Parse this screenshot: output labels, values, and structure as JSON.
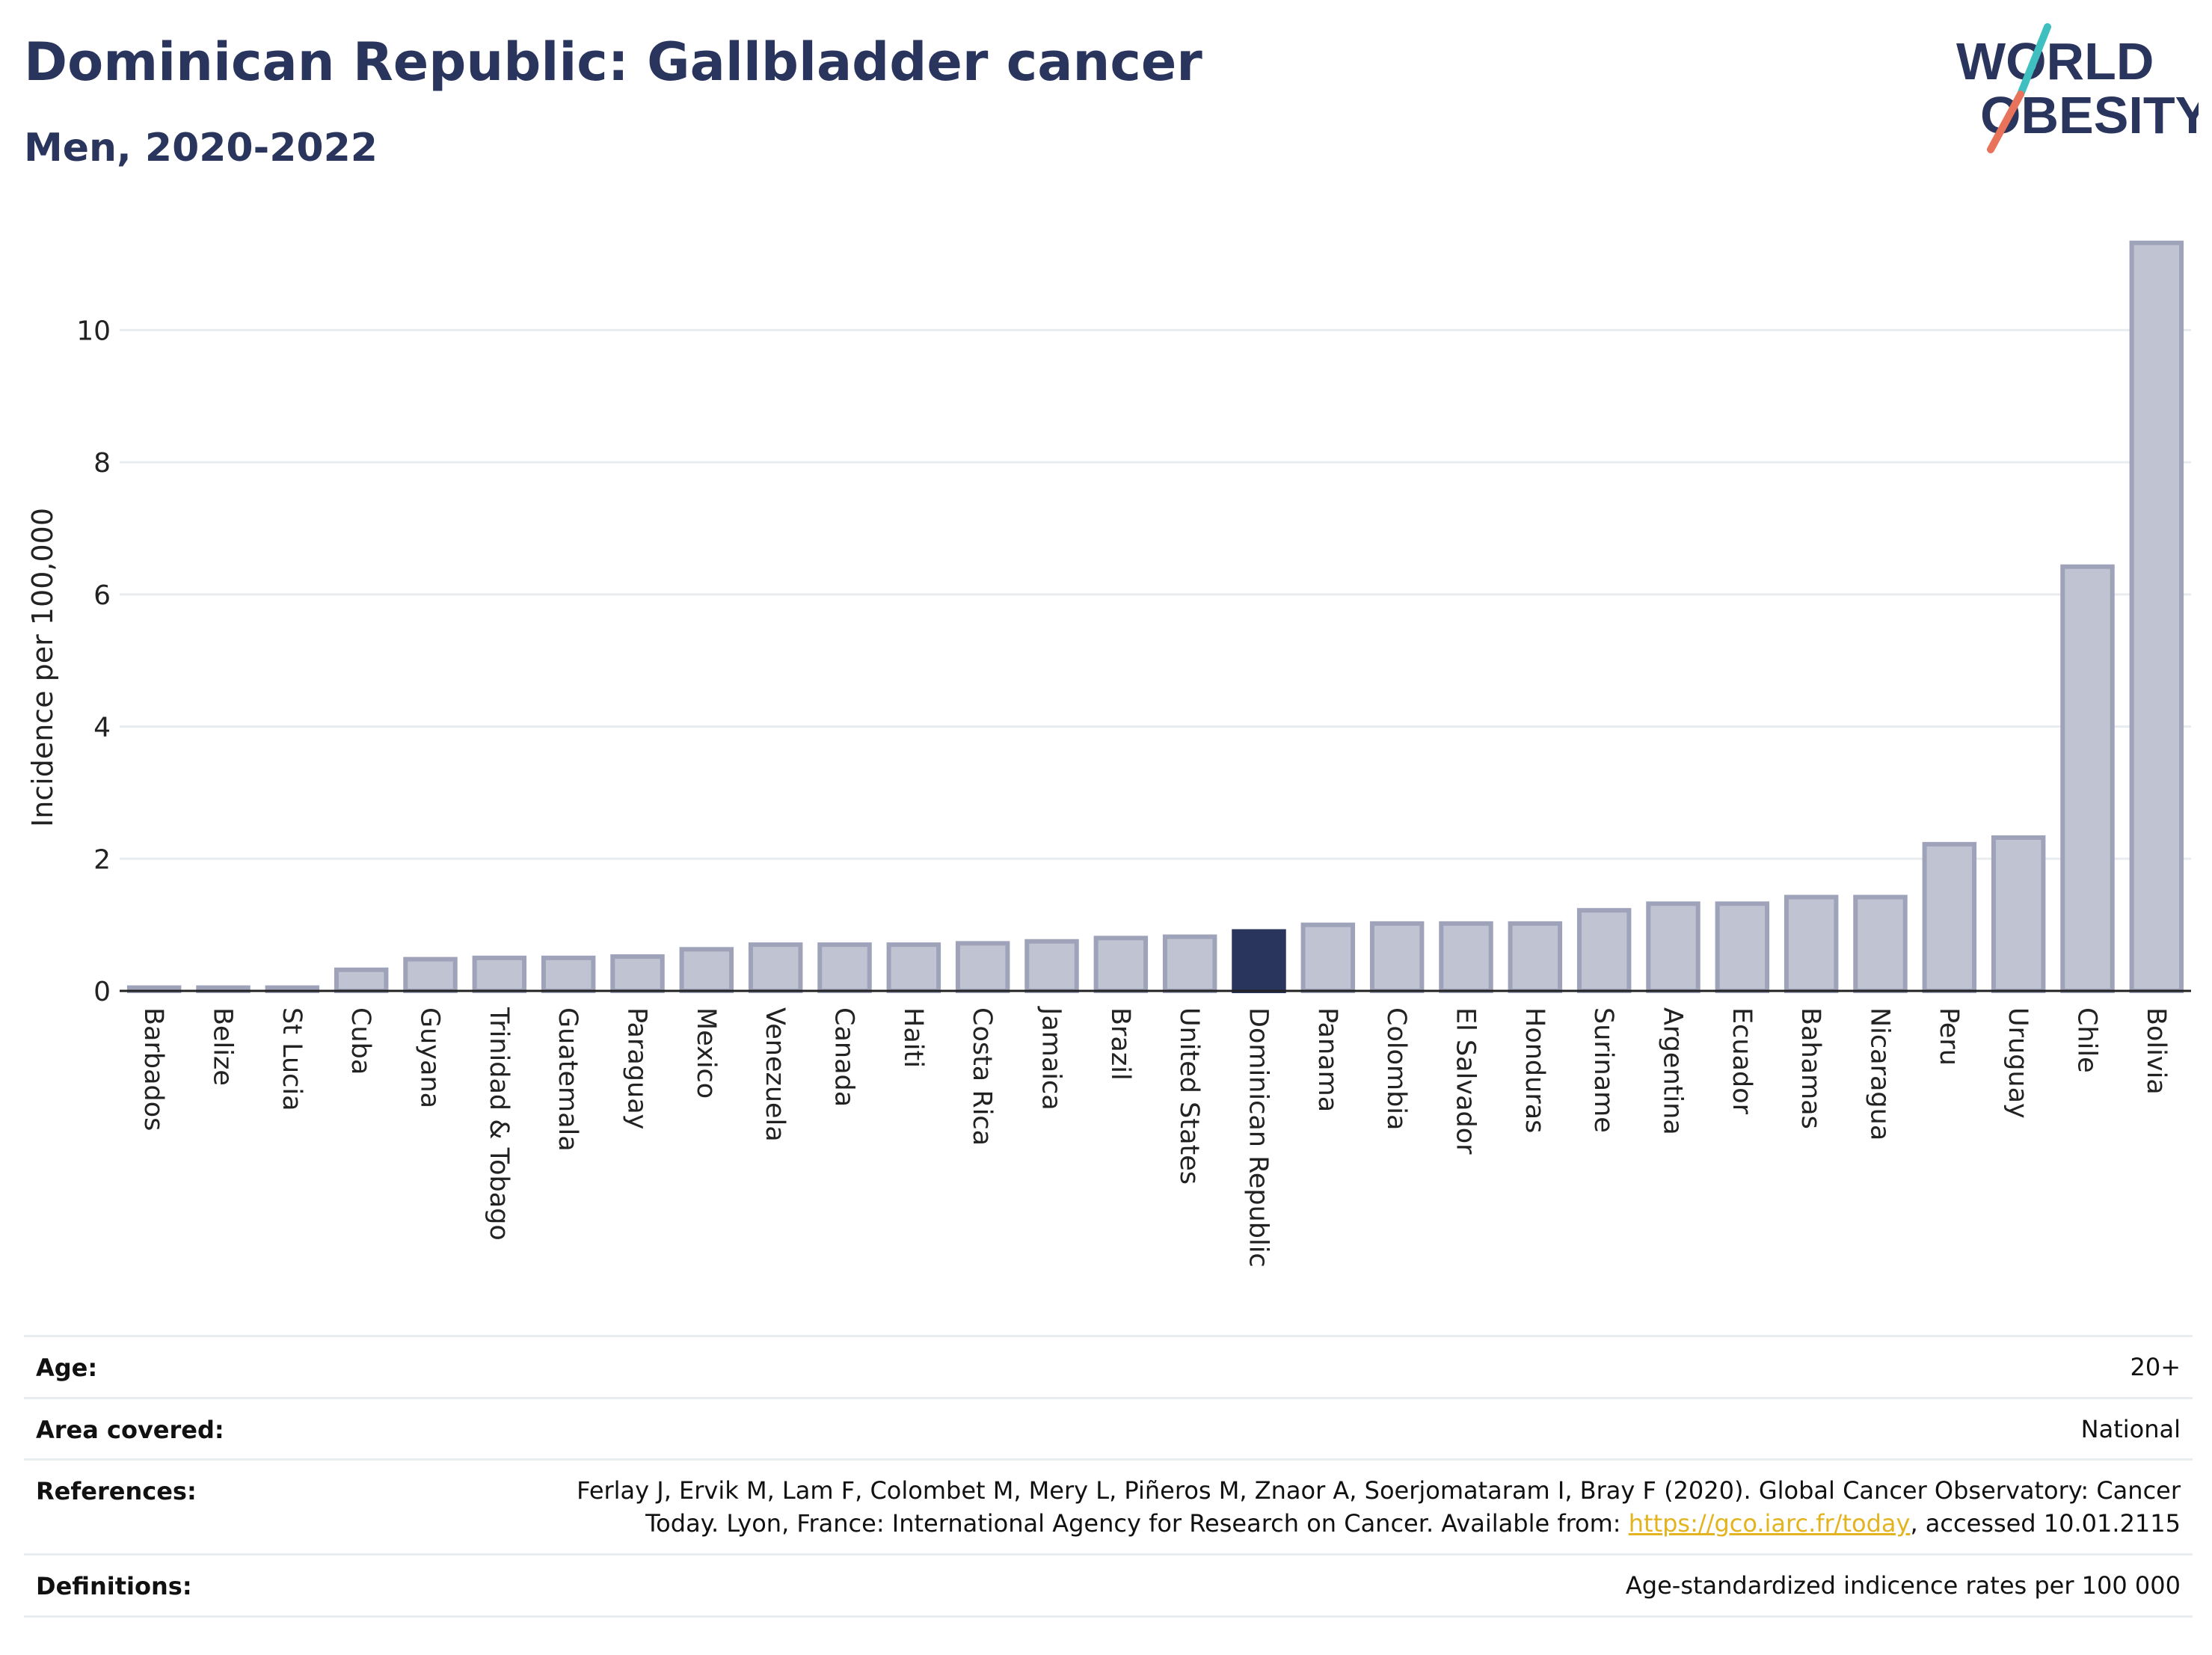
{
  "header": {
    "title": "Dominican Republic: Gallbladder cancer",
    "subtitle": "Men, 2020-2022"
  },
  "logo": {
    "line1": "WORLD",
    "line2": "OBESITY"
  },
  "colors": {
    "bar": "#c0c3d1",
    "bar_border": "#9ea3ba",
    "highlight": "#2a355e",
    "text": "#2a355e",
    "link": "#e3b320"
  },
  "chart_data": {
    "type": "bar",
    "title": "",
    "xlabel": "",
    "ylabel": "Incidence per 100,000",
    "ylim": [
      0,
      11.6
    ],
    "yticks": [
      0,
      2,
      4,
      6,
      8,
      10
    ],
    "grid": true,
    "highlight": "Dominican Republic",
    "categories": [
      "Barbados",
      "Belize",
      "St Lucia",
      "Cuba",
      "Guyana",
      "Trinidad & Tobago",
      "Guatemala",
      "Paraguay",
      "Mexico",
      "Venezuela",
      "Canada",
      "Haiti",
      "Costa Rica",
      "Jamaica",
      "Brazil",
      "United States",
      "Dominican Republic",
      "Panama",
      "Colombia",
      "El Salvador",
      "Honduras",
      "Suriname",
      "Argentina",
      "Ecuador",
      "Bahamas",
      "Nicaragua",
      "Peru",
      "Uruguay",
      "Chile",
      "Bolivia"
    ],
    "values": [
      0.05,
      0.05,
      0.05,
      0.32,
      0.48,
      0.5,
      0.5,
      0.52,
      0.63,
      0.7,
      0.7,
      0.7,
      0.72,
      0.75,
      0.8,
      0.82,
      0.9,
      1.0,
      1.02,
      1.02,
      1.02,
      1.22,
      1.32,
      1.32,
      1.42,
      1.42,
      2.22,
      2.32,
      6.42,
      11.32
    ]
  },
  "info": {
    "age_label": "Age:",
    "age_value": "20+",
    "area_label": "Area covered:",
    "area_value": "National",
    "references_label": "References:",
    "references_line1": "Ferlay J, Ervik M, Lam F, Colombet M, Mery L, Piñeros M, Znaor A, Soerjomataram I, Bray F (2020). Global Cancer Observatory: Cancer",
    "references_line2_pre": "Today. Lyon, France: International Agency for Research on Cancer. Available from: ",
    "references_link": "https://gco.iarc.fr/today",
    "references_line2_post": ", accessed 10.01.2115",
    "definitions_label": "Definitions:",
    "definitions_value": "Age-standardized indicence rates per 100 000"
  }
}
